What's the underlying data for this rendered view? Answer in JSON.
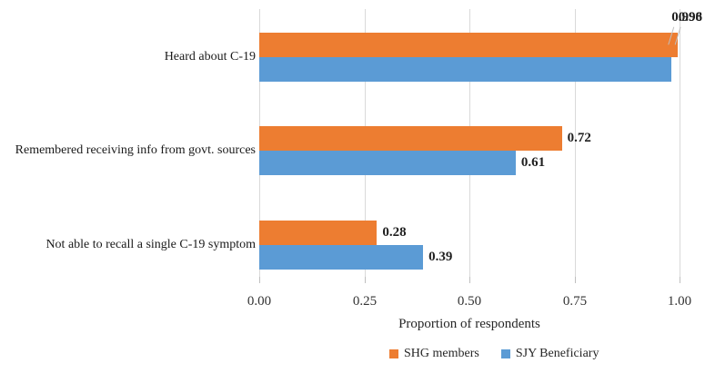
{
  "chart_data": {
    "type": "bar",
    "orientation": "horizontal",
    "title": "",
    "categories": [
      "Heard about C-19",
      "Remembered receiving info from govt. sources",
      "Not able to recall a single C-19 symptom"
    ],
    "series": [
      {
        "name": "SHG members",
        "color": "#ED7D31",
        "values": [
          0.996,
          0.72,
          0.28
        ],
        "value_labels": [
          "0.996",
          "0.72",
          "0.28"
        ]
      },
      {
        "name": "SJY Beneficiary",
        "color": "#5B9BD5",
        "values": [
          0.98,
          0.61,
          0.39
        ],
        "value_labels": [
          "0.98",
          "0.61",
          "0.39"
        ]
      }
    ],
    "xlabel": "Proportion of respondents",
    "ylabel": "",
    "xlim": [
      0,
      1.0
    ],
    "xticks": [
      0,
      0.25,
      0.5,
      0.75,
      1.0
    ],
    "xtick_labels": [
      "0.00",
      "0.25",
      "0.50",
      "0.75",
      "1.00"
    ],
    "grid": true,
    "legend_position": "bottom",
    "data_labels_shown": true
  },
  "colors": {
    "gridline": "#d9d9d9",
    "tick": "#bfbfbf",
    "leader_line": "#bfbfbf",
    "text": "#262626"
  }
}
